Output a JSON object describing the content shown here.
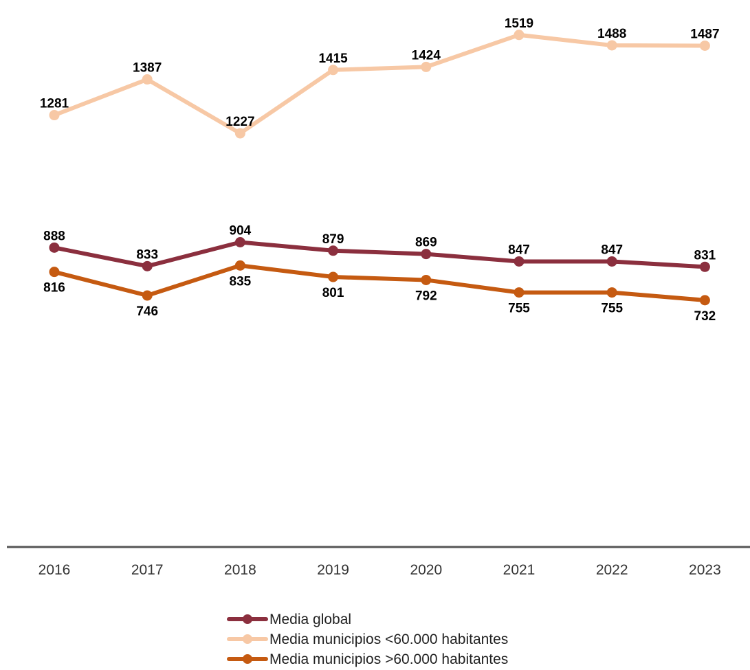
{
  "chart_data": {
    "type": "line",
    "categories": [
      "2016",
      "2017",
      "2018",
      "2019",
      "2020",
      "2021",
      "2022",
      "2023"
    ],
    "series": [
      {
        "name": "Media global",
        "color": "#8B2F3E",
        "values": [
          888,
          833,
          904,
          879,
          869,
          847,
          847,
          831
        ],
        "label_side": [
          "above",
          "above",
          "above",
          "above",
          "above",
          "above",
          "above",
          "above"
        ]
      },
      {
        "name": "Media municipios <60.000 habitantes",
        "color": "#F7C8A5",
        "values": [
          1281,
          1387,
          1227,
          1415,
          1424,
          1519,
          1488,
          1487
        ],
        "label_side": [
          "above",
          "above",
          "above",
          "above",
          "above",
          "above",
          "above",
          "above"
        ]
      },
      {
        "name": "Media municipios >60.000 habitantes",
        "color": "#C55A11",
        "values": [
          816,
          746,
          835,
          801,
          792,
          755,
          755,
          732
        ],
        "label_side": [
          "below",
          "below",
          "below",
          "below",
          "below",
          "below",
          "below",
          "below"
        ]
      }
    ],
    "ylim": [
      0,
      1600
    ],
    "grid": false,
    "legend_position": "bottom",
    "axis_color": "#555555"
  }
}
